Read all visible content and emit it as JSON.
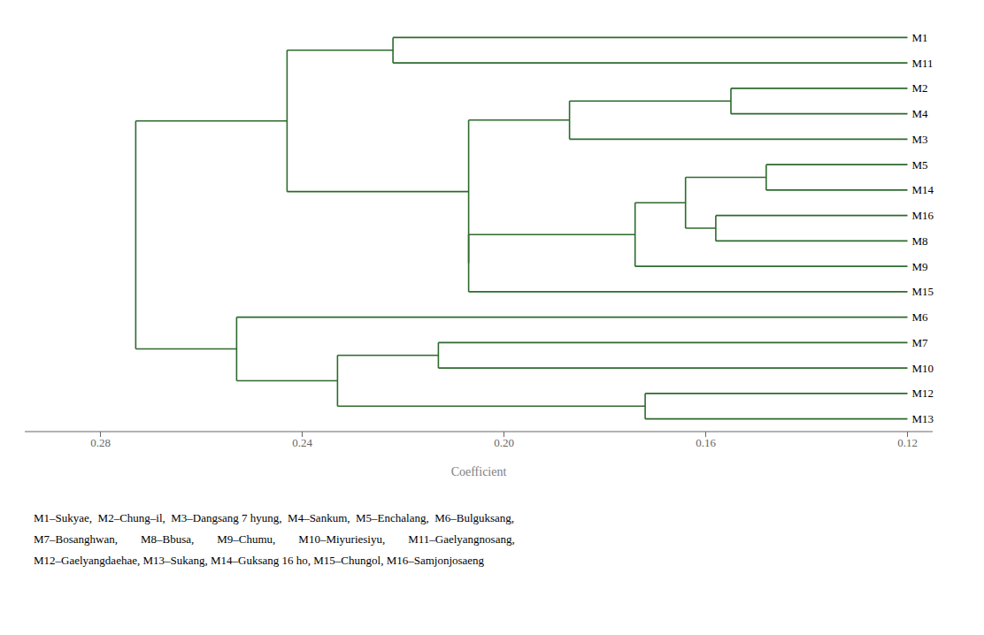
{
  "chart_data": {
    "type": "dendrogram",
    "xlabel": "Coefficient",
    "color": "#2d6a2d",
    "leaf_x": 0.12,
    "leaves": [
      "M1",
      "M11",
      "M2",
      "M4",
      "M3",
      "M5",
      "M14",
      "M16",
      "M8",
      "M9",
      "M15",
      "M6",
      "M7",
      "M10",
      "M12",
      "M13"
    ],
    "merges": [
      {
        "children": [
          "M1",
          "M11"
        ],
        "coefficient": 0.222
      },
      {
        "children": [
          "M2",
          "M4"
        ],
        "coefficient": 0.155
      },
      {
        "children": [
          1,
          "M3"
        ],
        "coefficient": 0.187
      },
      {
        "children": [
          "M5",
          "M14"
        ],
        "coefficient": 0.148
      },
      {
        "children": [
          "M16",
          "M8"
        ],
        "coefficient": 0.158
      },
      {
        "children": [
          3,
          4
        ],
        "coefficient": 0.164
      },
      {
        "children": [
          5,
          "M9"
        ],
        "coefficient": 0.174
      },
      {
        "children": [
          6,
          "M15"
        ],
        "coefficient": 0.207
      },
      {
        "children": [
          2,
          7
        ],
        "coefficient": 0.207
      },
      {
        "children": [
          0,
          8
        ],
        "coefficient": 0.243
      },
      {
        "children": [
          "M7",
          "M10"
        ],
        "coefficient": 0.213
      },
      {
        "children": [
          "M12",
          "M13"
        ],
        "coefficient": 0.172
      },
      {
        "children": [
          10,
          11
        ],
        "coefficient": 0.233
      },
      {
        "children": [
          "M6",
          12
        ],
        "coefficient": 0.253
      },
      {
        "children": [
          9,
          13
        ],
        "coefficient": 0.273
      }
    ],
    "xlim": [
      0.295,
      0.115
    ],
    "xticks": [
      0.28,
      0.24,
      {
        "value": 0.2,
        "label": "0.20"
      },
      0.16,
      0.12
    ],
    "annotation": "M1–Sukyae,  M2–Chung–il,  M3–Dangsang 7 hyung,  M4–Sankum,  M5–Enchalang,  M6–Bulguksang,\nM7–Bosanghwan,        M8–Bbusa,        M9–Chumu,        M10–Miyuriesiyu,        M11–Gaelyangnosang,\nM12–Gaelyangdaehae, M13–Sukang, M14–Guksang 16 ho, M15–Chungol, M16–Samjonjosaeng"
  }
}
